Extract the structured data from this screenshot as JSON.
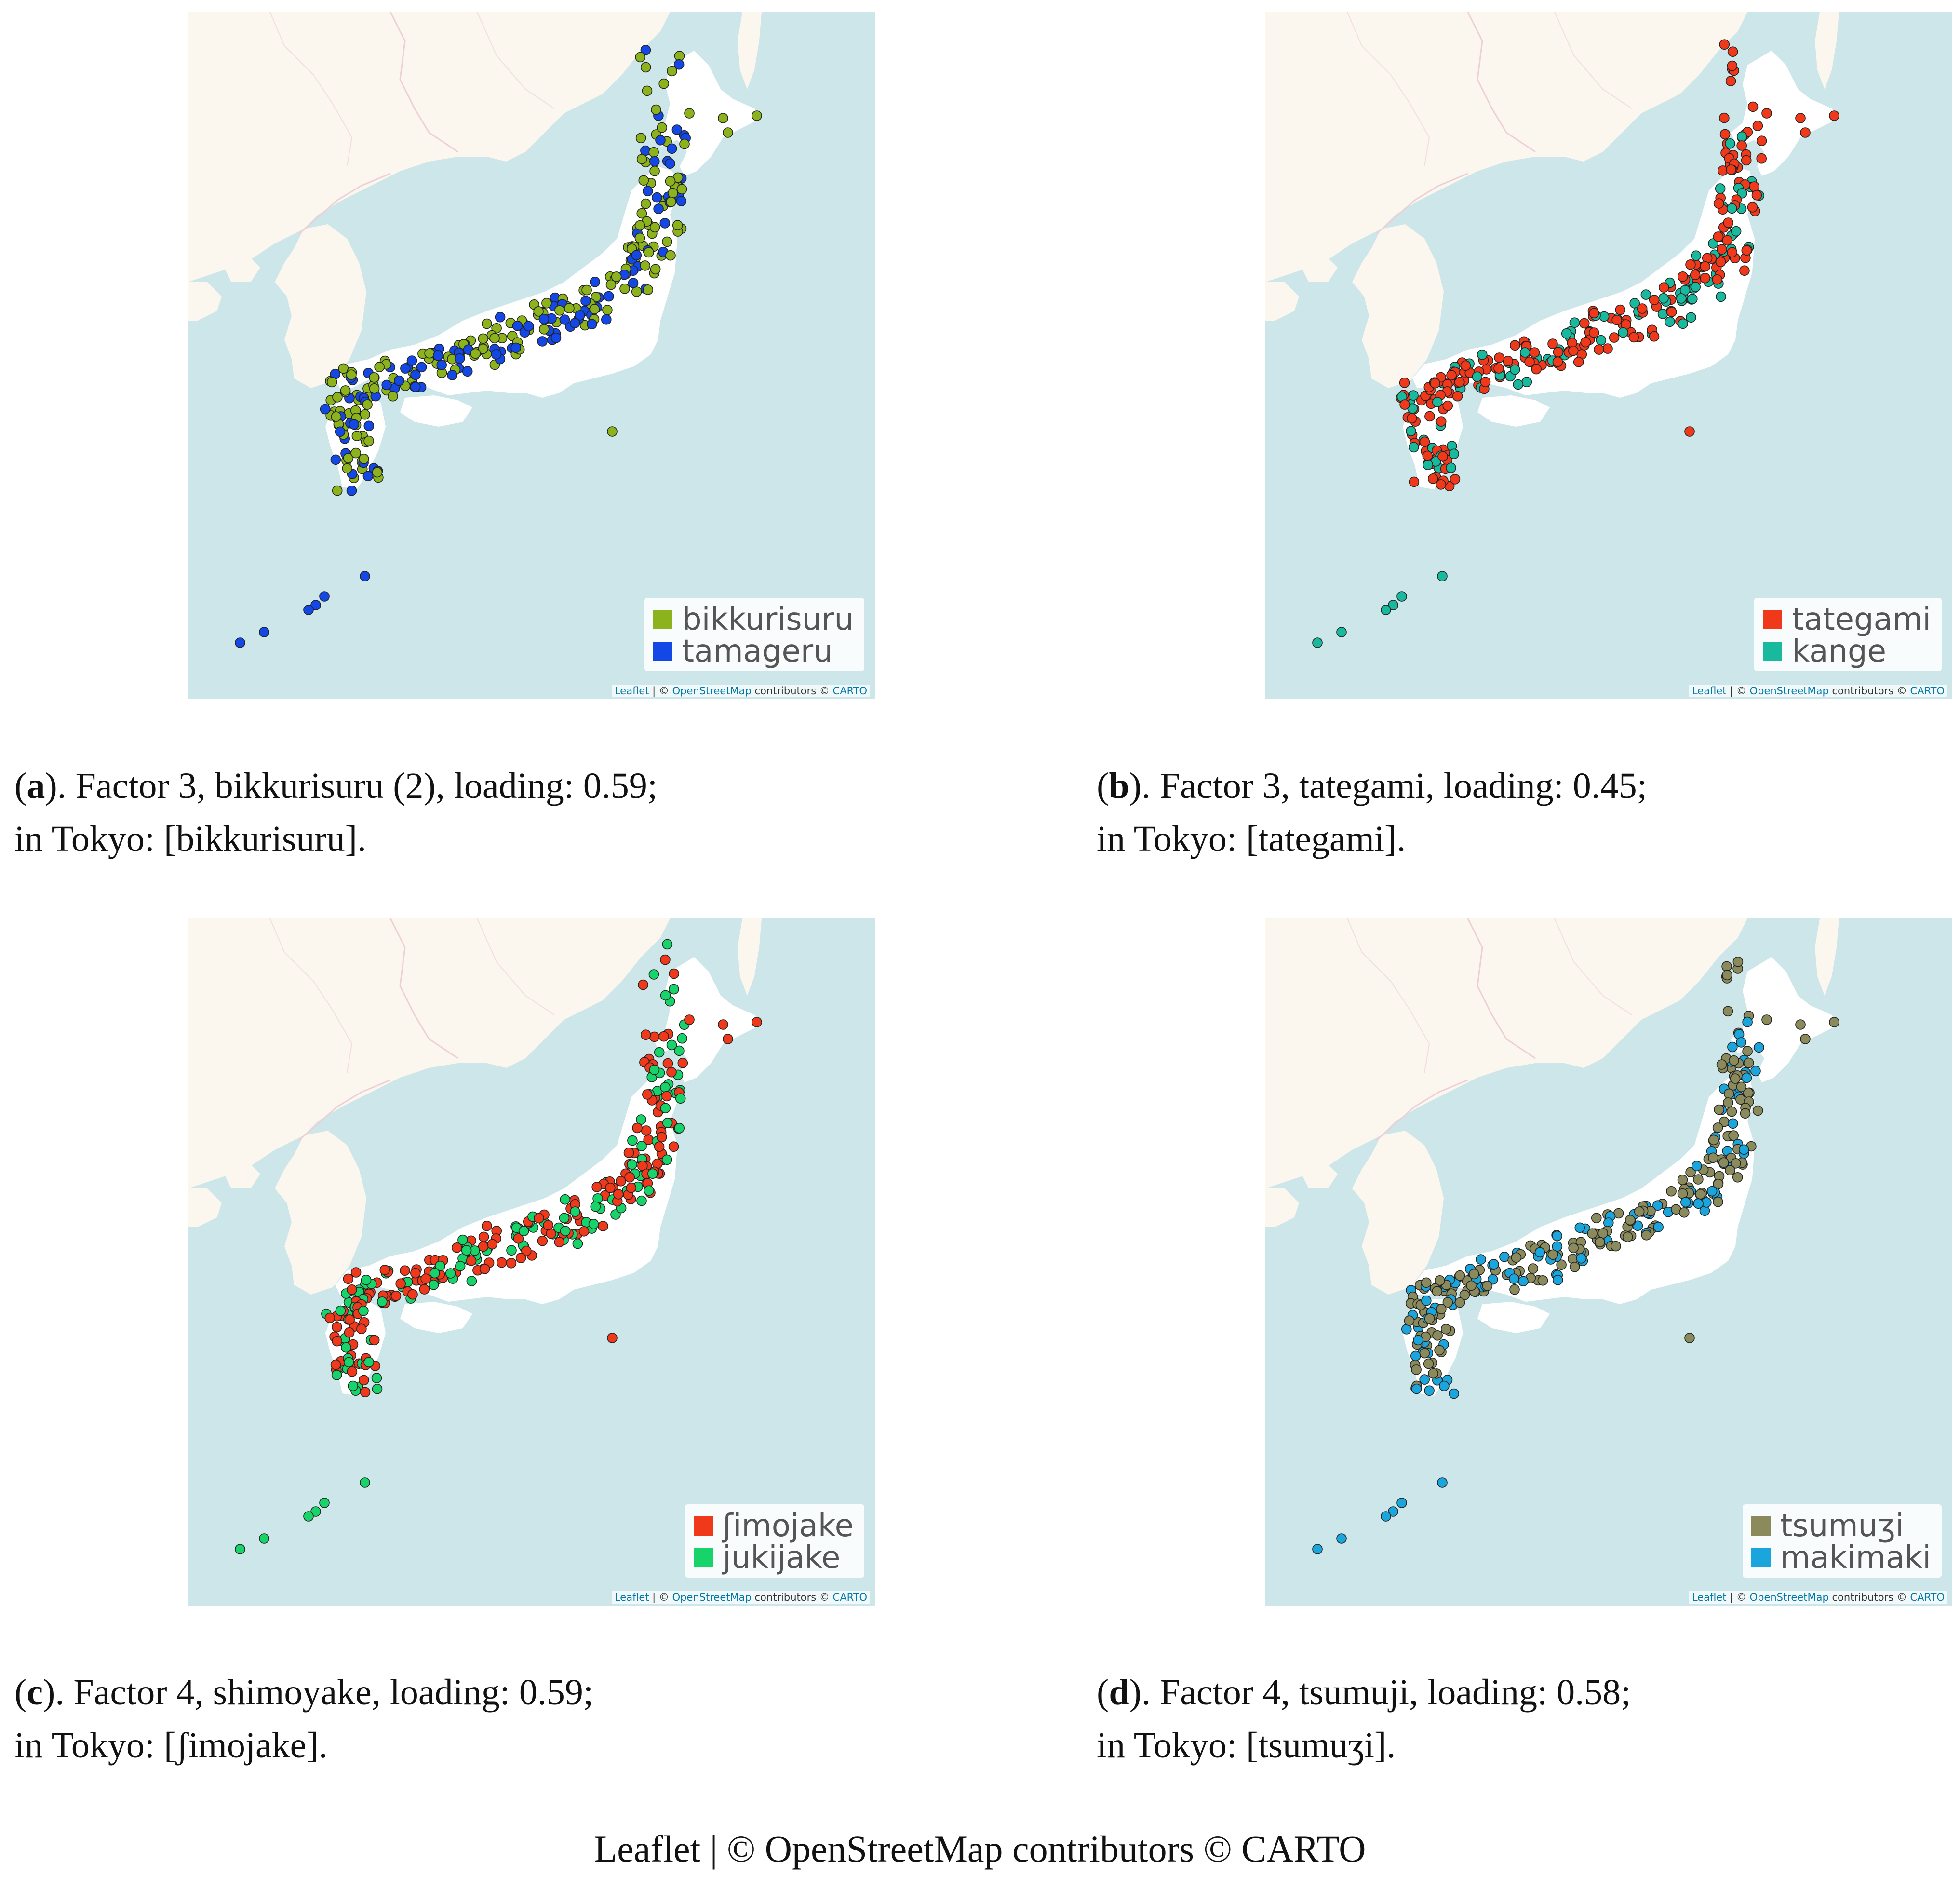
{
  "panels": [
    {
      "id": "a",
      "caption": {
        "letter": "a",
        "line1": "). Factor 3, bikkurisuru (2), loading: 0.59;",
        "line2": "in Tokyo: [bikkurisuru]."
      },
      "legend": [
        {
          "label": "bikkurisuru",
          "color": "#8db31c"
        },
        {
          "label": "tamageru",
          "color": "#1448e6"
        }
      ],
      "attribution": {
        "leaflet": "Leaflet",
        "sep": " | © ",
        "osm": "OpenStreetMap",
        "contrib": " contributors © ",
        "carto": "CARTO"
      }
    },
    {
      "id": "b",
      "caption": {
        "letter": "b",
        "line1": "). Factor 3, tategami, loading: 0.45;",
        "line2": "in Tokyo: [tategami]."
      },
      "legend": [
        {
          "label": "tategami",
          "color": "#f0391a"
        },
        {
          "label": "kange",
          "color": "#18b99c"
        }
      ],
      "attribution": {
        "leaflet": "Leaflet",
        "sep": " | © ",
        "osm": "OpenStreetMap",
        "contrib": " contributors © ",
        "carto": "CARTO"
      }
    },
    {
      "id": "c",
      "caption": {
        "letter": "c",
        "line1": "). Factor 4, shimoyake, loading: 0.59;",
        "line2": "in Tokyo: [ʃimojake]."
      },
      "legend": [
        {
          "label": "ʃimojake",
          "color": "#f0391a"
        },
        {
          "label": "jukijake",
          "color": "#16d46a"
        }
      ],
      "attribution": {
        "leaflet": "Leaflet",
        "sep": " | © ",
        "osm": "OpenStreetMap",
        "contrib": " contributors © ",
        "carto": "CARTO"
      }
    },
    {
      "id": "d",
      "caption": {
        "letter": "d",
        "line1": "). Factor 4, tsumuji, loading: 0.58;",
        "line2": "in Tokyo: [tsumuʒi]."
      },
      "legend": [
        {
          "label": "tsumuʒi",
          "color": "#8a8a5c"
        },
        {
          "label": "makimaki",
          "color": "#1aa6dc"
        }
      ],
      "attribution": {
        "leaflet": "Leaflet",
        "sep": " | © ",
        "osm": "OpenStreetMap",
        "contrib": " contributors © ",
        "carto": "CARTO"
      }
    }
  ],
  "footer": "Leaflet | © OpenStreetMap contributors © CARTO",
  "map_colors": {
    "water": "#cde6ea",
    "land": "#fbf6ee",
    "japan_land": "#ffffff",
    "border": "#efcfd6"
  }
}
